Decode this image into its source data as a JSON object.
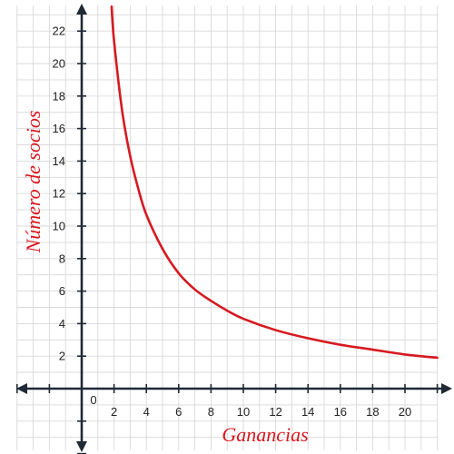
{
  "chart_data": {
    "type": "line",
    "title": "",
    "xlabel": "Ganancias",
    "ylabel": "Número de socios",
    "xlim": [
      -4,
      22
    ],
    "ylim": [
      -4,
      24
    ],
    "x_ticks": [
      2,
      4,
      6,
      8,
      10,
      12,
      14,
      16,
      18,
      20
    ],
    "y_ticks": [
      2,
      4,
      6,
      8,
      10,
      12,
      14,
      16,
      18,
      20,
      22
    ],
    "origin_label": "0",
    "grid": true,
    "colors": {
      "curve": "#d71920",
      "axis": "#1f2a36",
      "grid": "#d9d9d9",
      "label": "#d71920"
    },
    "series": [
      {
        "x": [
          1.85,
          2,
          2.5,
          3,
          3.5,
          4,
          5,
          6,
          7,
          8,
          9,
          10,
          12,
          14,
          16,
          18,
          20,
          22
        ],
        "values": [
          23.5,
          21.4,
          17.1,
          14.3,
          12.3,
          10.7,
          8.6,
          7.1,
          6.1,
          5.4,
          4.8,
          4.3,
          3.6,
          3.1,
          2.7,
          2.4,
          2.1,
          1.9
        ]
      }
    ]
  }
}
